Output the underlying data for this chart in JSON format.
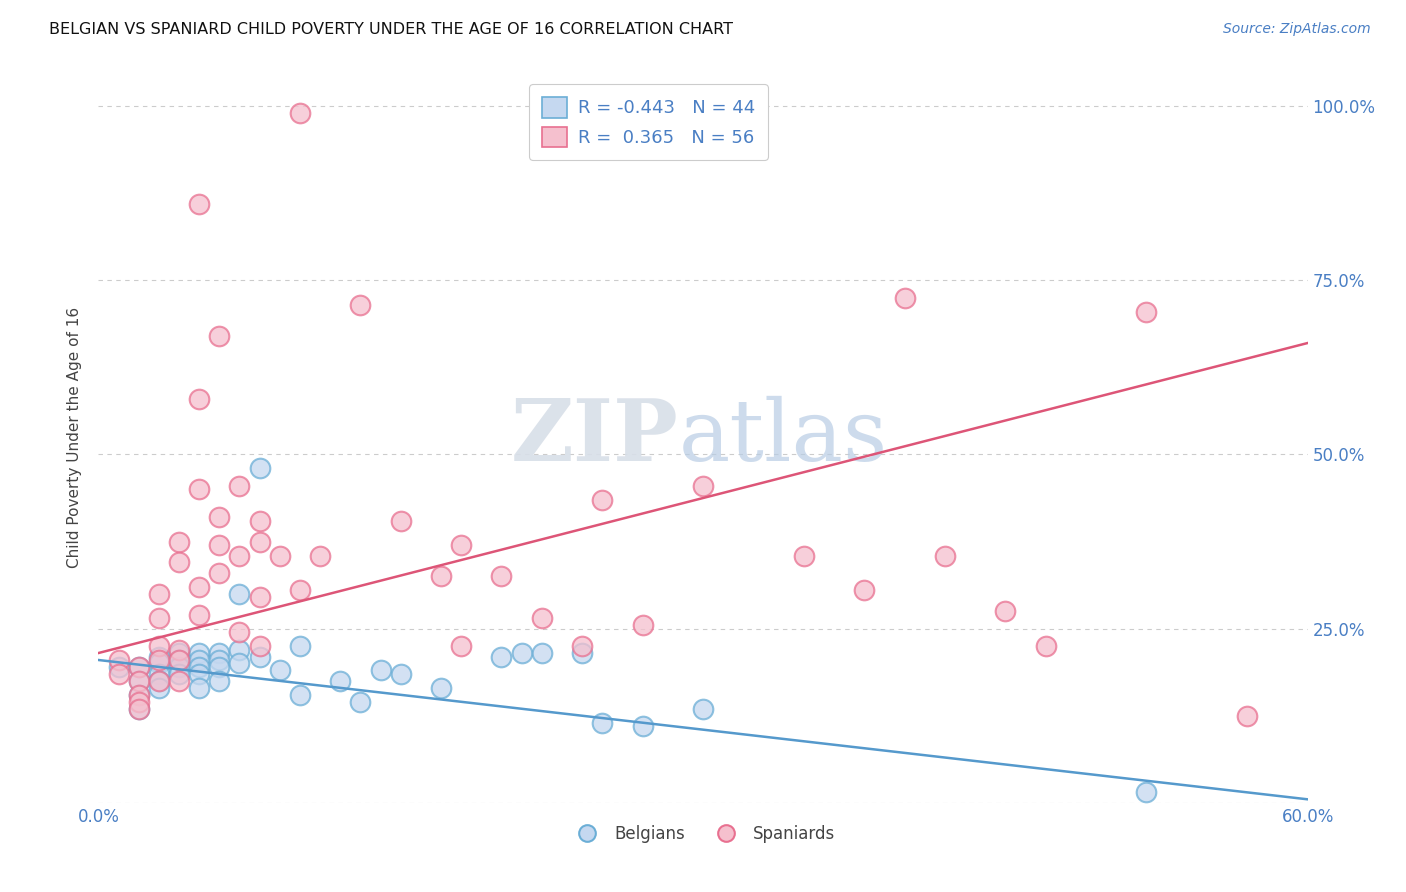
{
  "title": "BELGIAN VS SPANIARD CHILD POVERTY UNDER THE AGE OF 16 CORRELATION CHART",
  "source": "Source: ZipAtlas.com",
  "ylabel_label": "Child Poverty Under the Age of 16",
  "xlim": [
    0.0,
    0.6
  ],
  "ylim": [
    0.0,
    1.05
  ],
  "xticks": [
    0.0,
    0.1,
    0.2,
    0.3,
    0.4,
    0.5,
    0.6
  ],
  "xtick_labels": [
    "0.0%",
    "",
    "",
    "",
    "",
    "",
    "60.0%"
  ],
  "yticks": [
    0.0,
    0.25,
    0.5,
    0.75,
    1.0
  ],
  "ytick_labels": [
    "",
    "25.0%",
    "50.0%",
    "75.0%",
    "100.0%"
  ],
  "belgian_fill_color": "#c5d8f0",
  "spaniard_fill_color": "#f5c0ce",
  "belgian_edge_color": "#6baed6",
  "spaniard_edge_color": "#e87090",
  "belgian_line_color": "#5599cc",
  "spaniard_line_color": "#dd5577",
  "grid_color": "#cccccc",
  "background_color": "#ffffff",
  "label_color": "#4a7fc4",
  "legend_R_belgian": "-0.443",
  "legend_N_belgian": "44",
  "legend_R_spaniard": "0.365",
  "legend_N_spaniard": "56",
  "belgians_label": "Belgians",
  "spaniards_label": "Spaniards",
  "belgian_points": [
    [
      0.01,
      0.195
    ],
    [
      0.02,
      0.195
    ],
    [
      0.02,
      0.175
    ],
    [
      0.02,
      0.155
    ],
    [
      0.02,
      0.135
    ],
    [
      0.03,
      0.21
    ],
    [
      0.03,
      0.2
    ],
    [
      0.03,
      0.185
    ],
    [
      0.03,
      0.175
    ],
    [
      0.03,
      0.165
    ],
    [
      0.04,
      0.215
    ],
    [
      0.04,
      0.205
    ],
    [
      0.04,
      0.195
    ],
    [
      0.04,
      0.185
    ],
    [
      0.05,
      0.215
    ],
    [
      0.05,
      0.205
    ],
    [
      0.05,
      0.195
    ],
    [
      0.05,
      0.185
    ],
    [
      0.05,
      0.165
    ],
    [
      0.06,
      0.215
    ],
    [
      0.06,
      0.205
    ],
    [
      0.06,
      0.195
    ],
    [
      0.06,
      0.175
    ],
    [
      0.07,
      0.3
    ],
    [
      0.07,
      0.22
    ],
    [
      0.07,
      0.2
    ],
    [
      0.08,
      0.48
    ],
    [
      0.08,
      0.21
    ],
    [
      0.09,
      0.19
    ],
    [
      0.1,
      0.225
    ],
    [
      0.1,
      0.155
    ],
    [
      0.12,
      0.175
    ],
    [
      0.13,
      0.145
    ],
    [
      0.14,
      0.19
    ],
    [
      0.15,
      0.185
    ],
    [
      0.17,
      0.165
    ],
    [
      0.2,
      0.21
    ],
    [
      0.21,
      0.215
    ],
    [
      0.22,
      0.215
    ],
    [
      0.24,
      0.215
    ],
    [
      0.25,
      0.115
    ],
    [
      0.27,
      0.11
    ],
    [
      0.3,
      0.135
    ],
    [
      0.52,
      0.015
    ]
  ],
  "spaniard_points": [
    [
      0.01,
      0.205
    ],
    [
      0.01,
      0.185
    ],
    [
      0.02,
      0.195
    ],
    [
      0.02,
      0.175
    ],
    [
      0.02,
      0.155
    ],
    [
      0.02,
      0.145
    ],
    [
      0.02,
      0.135
    ],
    [
      0.03,
      0.3
    ],
    [
      0.03,
      0.265
    ],
    [
      0.03,
      0.225
    ],
    [
      0.03,
      0.205
    ],
    [
      0.03,
      0.175
    ],
    [
      0.04,
      0.375
    ],
    [
      0.04,
      0.345
    ],
    [
      0.04,
      0.22
    ],
    [
      0.04,
      0.205
    ],
    [
      0.04,
      0.175
    ],
    [
      0.05,
      0.86
    ],
    [
      0.05,
      0.58
    ],
    [
      0.05,
      0.45
    ],
    [
      0.05,
      0.31
    ],
    [
      0.05,
      0.27
    ],
    [
      0.06,
      0.67
    ],
    [
      0.06,
      0.41
    ],
    [
      0.06,
      0.37
    ],
    [
      0.06,
      0.33
    ],
    [
      0.07,
      0.455
    ],
    [
      0.07,
      0.355
    ],
    [
      0.07,
      0.245
    ],
    [
      0.08,
      0.405
    ],
    [
      0.08,
      0.375
    ],
    [
      0.08,
      0.295
    ],
    [
      0.08,
      0.225
    ],
    [
      0.09,
      0.355
    ],
    [
      0.1,
      0.99
    ],
    [
      0.1,
      0.305
    ],
    [
      0.11,
      0.355
    ],
    [
      0.13,
      0.715
    ],
    [
      0.15,
      0.405
    ],
    [
      0.17,
      0.325
    ],
    [
      0.18,
      0.37
    ],
    [
      0.18,
      0.225
    ],
    [
      0.2,
      0.325
    ],
    [
      0.22,
      0.265
    ],
    [
      0.24,
      0.225
    ],
    [
      0.25,
      0.435
    ],
    [
      0.27,
      0.255
    ],
    [
      0.3,
      0.455
    ],
    [
      0.35,
      0.355
    ],
    [
      0.38,
      0.305
    ],
    [
      0.4,
      0.725
    ],
    [
      0.42,
      0.355
    ],
    [
      0.45,
      0.275
    ],
    [
      0.47,
      0.225
    ],
    [
      0.52,
      0.705
    ],
    [
      0.57,
      0.125
    ]
  ],
  "belgian_line_x": [
    0.0,
    0.6
  ],
  "belgian_line_y": [
    0.205,
    0.005
  ],
  "spaniard_line_x": [
    0.0,
    0.6
  ],
  "spaniard_line_y": [
    0.215,
    0.66
  ]
}
